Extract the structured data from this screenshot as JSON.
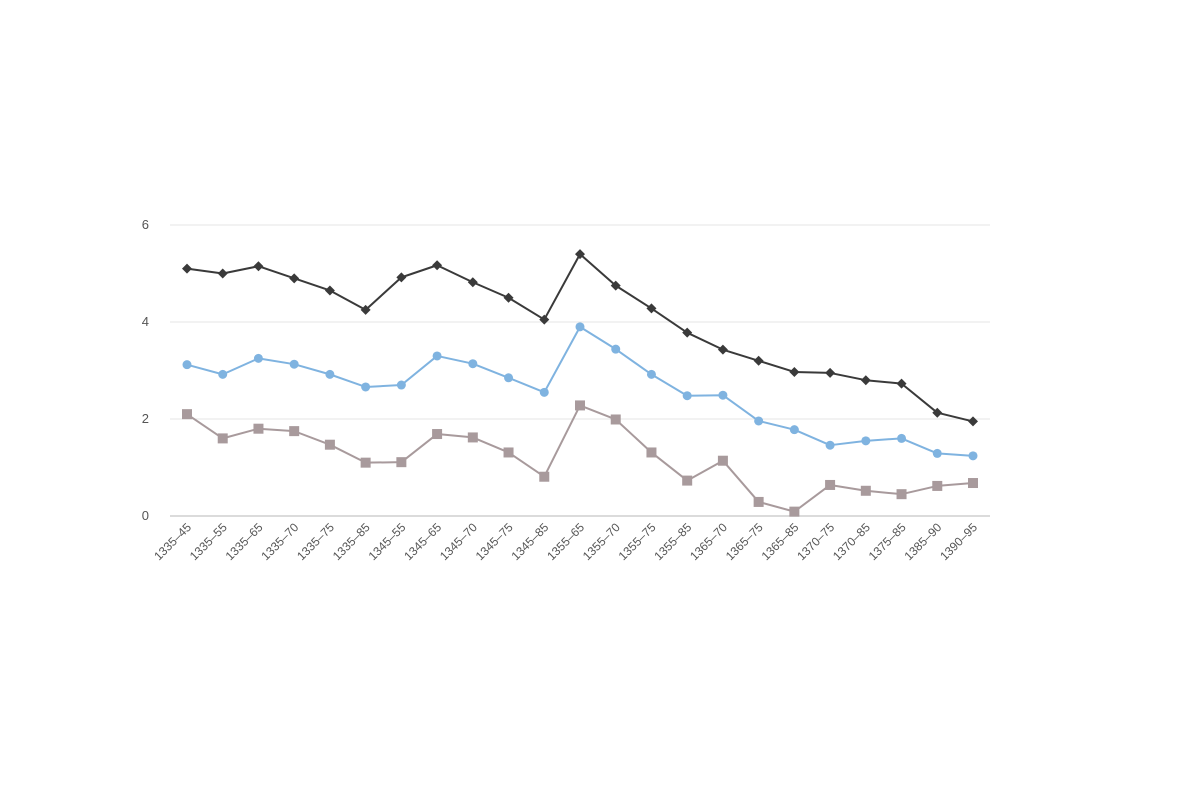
{
  "chart_data": {
    "type": "line",
    "title": "",
    "xlabel": "",
    "ylabel": "",
    "ylim": [
      0,
      6
    ],
    "yticks": [
      0,
      2,
      4,
      6
    ],
    "grid": true,
    "legend": "none",
    "categories": [
      "1335–45",
      "1335–55",
      "1335–65",
      "1335–70",
      "1335–75",
      "1335–85",
      "1345–55",
      "1345–65",
      "1345–70",
      "1345–75",
      "1345–85",
      "1355–65",
      "1355–70",
      "1355–75",
      "1355–85",
      "1365–70",
      "1365–75",
      "1365–85",
      "1370–75",
      "1370–85",
      "1375–85",
      "1385–90",
      "1390–95"
    ],
    "series": [
      {
        "color": "#3a3a3a",
        "marker": "diamond",
        "values": [
          5.1,
          5.0,
          5.15,
          4.9,
          4.65,
          4.25,
          4.92,
          5.17,
          4.82,
          4.5,
          4.05,
          5.4,
          4.75,
          4.28,
          3.78,
          3.43,
          3.2,
          2.97,
          2.95,
          2.8,
          2.73,
          2.13,
          1.95
        ]
      },
      {
        "color": "#7fb3e0",
        "marker": "circle",
        "values": [
          3.12,
          2.92,
          3.25,
          3.13,
          2.92,
          2.66,
          2.7,
          3.3,
          3.14,
          2.85,
          2.55,
          3.9,
          3.44,
          2.92,
          2.48,
          2.49,
          1.96,
          1.78,
          1.46,
          1.55,
          1.6,
          1.29,
          1.24
        ]
      },
      {
        "color": "#a89a9c",
        "marker": "square",
        "values": [
          2.1,
          1.6,
          1.8,
          1.75,
          1.47,
          1.1,
          1.11,
          1.69,
          1.62,
          1.31,
          0.81,
          2.28,
          1.99,
          1.31,
          0.73,
          1.14,
          0.29,
          0.09,
          0.64,
          0.52,
          0.45,
          0.62,
          0.68
        ]
      }
    ]
  }
}
